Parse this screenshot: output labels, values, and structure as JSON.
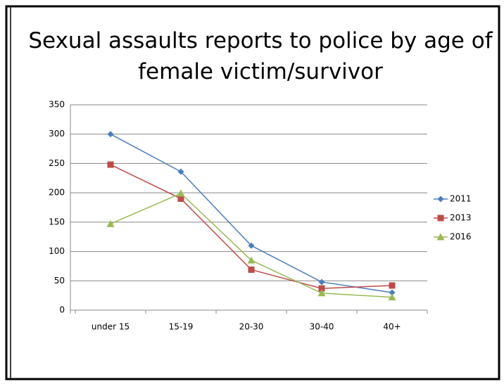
{
  "chart_data": {
    "type": "line",
    "title": "Sexual assaults reports to police by age of female victim/survivor",
    "categories": [
      "under 15",
      "15-19",
      "20-30",
      "30-40",
      "40+"
    ],
    "series": [
      {
        "name": "2011",
        "color": "#4a7ebb",
        "marker": "diamond",
        "values": [
          300,
          236,
          110,
          48,
          30
        ]
      },
      {
        "name": "2013",
        "color": "#be4b48",
        "marker": "square",
        "values": [
          248,
          190,
          69,
          37,
          42
        ]
      },
      {
        "name": "2016",
        "color": "#98b954",
        "marker": "triangle",
        "values": [
          147,
          199,
          85,
          29,
          22
        ]
      }
    ],
    "ylim": [
      0,
      350
    ],
    "yticks": [
      0,
      50,
      100,
      150,
      200,
      250,
      300,
      350
    ],
    "grid": true,
    "legend": "right"
  }
}
